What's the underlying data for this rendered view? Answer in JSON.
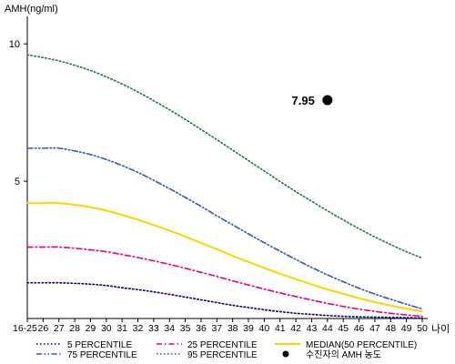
{
  "chart_data": {
    "type": "line",
    "title": "",
    "ylabel": "AMH(ng/ml)",
    "xlabel": "나이",
    "x": [
      "16-25",
      "26",
      "27",
      "28",
      "29",
      "30",
      "31",
      "32",
      "33",
      "34",
      "35",
      "36",
      "37",
      "38",
      "39",
      "40",
      "41",
      "42",
      "43",
      "44",
      "45",
      "46",
      "47",
      "48",
      "49",
      "50"
    ],
    "ylim": [
      0,
      11
    ],
    "yticks": [
      5,
      10
    ],
    "grid": false,
    "legend_position": "bottom",
    "series": [
      {
        "name": "5 PERCENTILE",
        "color": "#000080",
        "dash": "dot",
        "values": [
          1.3,
          1.3,
          1.3,
          1.28,
          1.25,
          1.2,
          1.12,
          1.05,
          0.97,
          0.88,
          0.78,
          0.68,
          0.58,
          0.48,
          0.4,
          0.32,
          0.25,
          0.19,
          0.15,
          0.11,
          0.08,
          0.06,
          0.05,
          0.04,
          0.03,
          0.02
        ]
      },
      {
        "name": "25 PERCENTILE",
        "color": "#e6007e",
        "dash": "dashdot",
        "values": [
          2.6,
          2.6,
          2.6,
          2.56,
          2.5,
          2.43,
          2.33,
          2.22,
          2.1,
          1.97,
          1.83,
          1.68,
          1.53,
          1.37,
          1.22,
          1.07,
          0.93,
          0.8,
          0.67,
          0.55,
          0.44,
          0.34,
          0.26,
          0.19,
          0.13,
          0.08
        ]
      },
      {
        "name": "MEDIAN(50 PERCENTILE)",
        "color": "#ffd200",
        "dash": "solid",
        "values": [
          4.2,
          4.2,
          4.2,
          4.14,
          4.05,
          3.93,
          3.77,
          3.6,
          3.4,
          3.2,
          2.98,
          2.75,
          2.52,
          2.28,
          2.06,
          1.84,
          1.63,
          1.43,
          1.24,
          1.06,
          0.9,
          0.74,
          0.6,
          0.47,
          0.36,
          0.25
        ]
      },
      {
        "name": "75 PERCENTILE",
        "color": "#3355bb",
        "dash": "dashdotdot",
        "values": [
          6.2,
          6.2,
          6.2,
          6.1,
          5.97,
          5.79,
          5.57,
          5.32,
          5.03,
          4.73,
          4.41,
          4.08,
          3.74,
          3.41,
          3.08,
          2.76,
          2.45,
          2.15,
          1.86,
          1.59,
          1.34,
          1.1,
          0.89,
          0.7,
          0.52,
          0.35
        ]
      },
      {
        "name": "95 PERCENTILE",
        "color": "#1a7a3a",
        "dash": "dot",
        "values": [
          9.6,
          9.5,
          9.38,
          9.22,
          9.03,
          8.8,
          8.54,
          8.25,
          7.93,
          7.6,
          7.25,
          6.88,
          6.51,
          6.13,
          5.75,
          5.37,
          4.99,
          4.62,
          4.27,
          3.92,
          3.59,
          3.27,
          2.97,
          2.69,
          2.43,
          2.2
        ]
      }
    ],
    "points": [
      {
        "name": "수진자의 AMH 농도",
        "x": "44",
        "y": 7.95,
        "label": "7.95",
        "color": "#000000"
      }
    ]
  }
}
